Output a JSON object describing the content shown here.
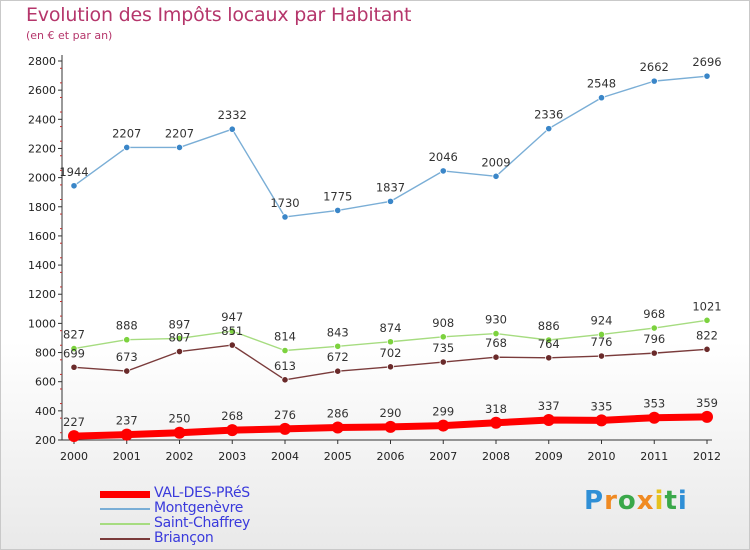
{
  "title": "Evolution des Impôts locaux par Habitant",
  "subtitle": "(en € et par an)",
  "brand": {
    "letters": [
      "P",
      "r",
      "o",
      "x",
      "i",
      "t",
      "i"
    ]
  },
  "chart_data": {
    "type": "line",
    "x": [
      2000,
      2001,
      2002,
      2003,
      2004,
      2005,
      2006,
      2007,
      2008,
      2009,
      2010,
      2011,
      2012
    ],
    "x_tick_labels": [
      "2000",
      "2001",
      "2002",
      "2003",
      "2004",
      "2005",
      "2006",
      "2007",
      "2008",
      "2009",
      "2010",
      "2011",
      "2012"
    ],
    "ylim": [
      200,
      2800
    ],
    "y_ticks": [
      200,
      400,
      600,
      800,
      1000,
      1200,
      1400,
      1600,
      1800,
      2000,
      2200,
      2400,
      2600,
      2800
    ],
    "grid": false,
    "legend_position": "bottom-left",
    "series": [
      {
        "name": "Montgenèvre",
        "color": "#7aaed6",
        "marker_color": "#3a86c8",
        "values": [
          1944,
          2207,
          2207,
          2332,
          1730,
          1775,
          1837,
          2046,
          2009,
          2336,
          2548,
          2662,
          2696
        ]
      },
      {
        "name": "Saint-Chaffrey",
        "color": "#a6dc80",
        "marker_color": "#7cd23e",
        "values": [
          827,
          888,
          897,
          947,
          814,
          843,
          874,
          908,
          930,
          886,
          924,
          968,
          1021
        ]
      },
      {
        "name": "Briançon",
        "color": "#7a3b3b",
        "marker_color": "#6a2a2a",
        "values": [
          699,
          673,
          807,
          851,
          613,
          672,
          702,
          735,
          768,
          764,
          776,
          796,
          822
        ]
      },
      {
        "name": "VAL-DES-PRéS",
        "color": "#ff0000",
        "marker_color": "#ff0000",
        "values": [
          227,
          237,
          250,
          268,
          276,
          286,
          290,
          299,
          318,
          337,
          335,
          353,
          359
        ]
      }
    ],
    "legend_order": [
      "VAL-DES-PRéS",
      "Montgenèvre",
      "Saint-Chaffrey",
      "Briançon"
    ]
  }
}
